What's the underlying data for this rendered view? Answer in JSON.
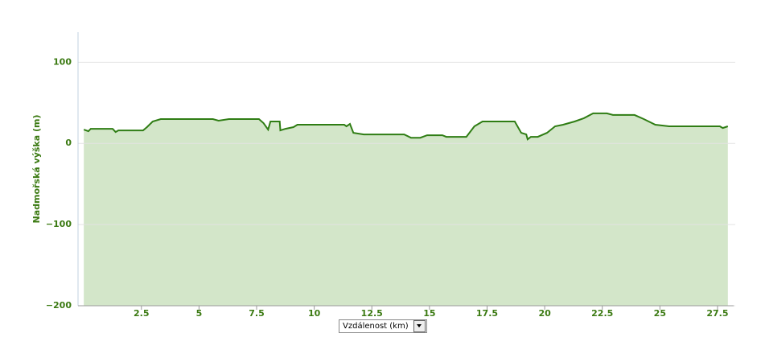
{
  "chart_data": {
    "type": "area",
    "y_label": "Nadmořská výška (m)",
    "x_label": "Vzdálenost (km)",
    "x": [
      0,
      0.2,
      0.3,
      1.25,
      1.38,
      1.5,
      2.57,
      2.74,
      2.99,
      3.34,
      5.6,
      5.85,
      6.3,
      7.6,
      7.8,
      8.0,
      8.1,
      8.5,
      8.53,
      8.75,
      9.1,
      9.27,
      11.3,
      11.4,
      11.55,
      11.7,
      12.15,
      13.9,
      14.2,
      14.6,
      14.9,
      15.56,
      15.73,
      16.6,
      16.95,
      17.3,
      18.7,
      18.98,
      19.2,
      19.26,
      19.4,
      19.7,
      20.1,
      20.45,
      20.8,
      21.3,
      21.7,
      22.1,
      22.7,
      22.96,
      23.9,
      24.3,
      24.8,
      25.4,
      27.6,
      27.73,
      27.95
    ],
    "values": [
      17,
      15,
      18,
      18,
      14,
      16,
      16,
      20,
      27,
      30,
      30,
      28,
      30,
      30,
      25,
      17,
      27,
      27,
      16,
      18,
      20,
      23,
      23,
      21,
      24,
      13,
      11,
      11,
      7,
      7,
      10,
      10,
      8,
      8,
      21,
      27,
      27,
      13,
      11,
      5,
      8,
      8,
      13,
      21,
      23,
      27,
      31,
      37,
      37,
      35,
      35,
      30,
      23,
      21,
      21,
      19,
      21
    ],
    "color": "#2f7d14",
    "fill_color": "#d3e6c9",
    "xlim": [
      -0.25,
      28.2
    ],
    "ylim": [
      -200,
      137
    ],
    "xticks": [
      2.5,
      5,
      7.5,
      10,
      12.5,
      15,
      17.5,
      20,
      22.5,
      25,
      27.5
    ],
    "yticks": [
      {
        "value": -200,
        "label": "−200"
      },
      {
        "value": -100,
        "label": "−100"
      },
      0,
      100
    ],
    "grid": true
  }
}
